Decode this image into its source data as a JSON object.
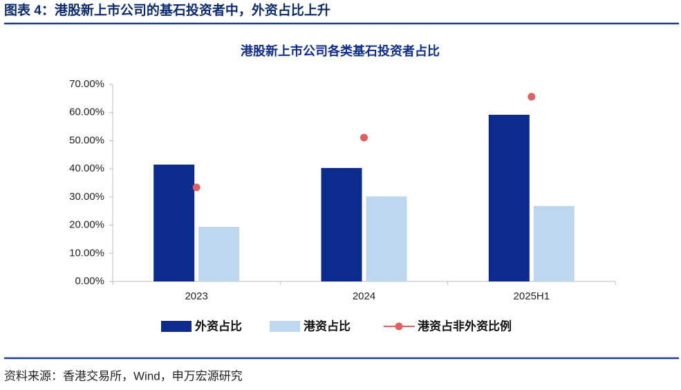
{
  "header": {
    "title": "图表 4：港股新上市公司的基石投资者中，外资占比上升"
  },
  "chart_data": {
    "type": "bar",
    "title": "港股新上市公司各类基石投资者占比",
    "categories": [
      "2023",
      "2024",
      "2025H1"
    ],
    "series": [
      {
        "name": "外资占比",
        "type": "bar",
        "color": "#0b2b8e",
        "values": [
          41.5,
          40.3,
          59.2
        ]
      },
      {
        "name": "港资占比",
        "type": "bar",
        "color": "#bdd7ee",
        "values": [
          19.4,
          30.2,
          26.8
        ]
      },
      {
        "name": "港资占非外资比例",
        "type": "scatter",
        "color": "#e06060",
        "values": [
          33.4,
          51.1,
          65.6
        ]
      }
    ],
    "ylim": [
      0,
      70
    ],
    "yticks": [
      {
        "value": 0,
        "label": "0.00%"
      },
      {
        "value": 10,
        "label": "10.00%"
      },
      {
        "value": 20,
        "label": "20.00%"
      },
      {
        "value": 30,
        "label": "30.00%"
      },
      {
        "value": 40,
        "label": "40.00%"
      },
      {
        "value": 50,
        "label": "50.00%"
      },
      {
        "value": 60,
        "label": "60.00%"
      },
      {
        "value": 70,
        "label": "70.00%"
      }
    ],
    "grid": false,
    "legend": "bottom"
  },
  "footer": {
    "source": "资料来源：香港交易所，Wind，申万宏源研究"
  }
}
